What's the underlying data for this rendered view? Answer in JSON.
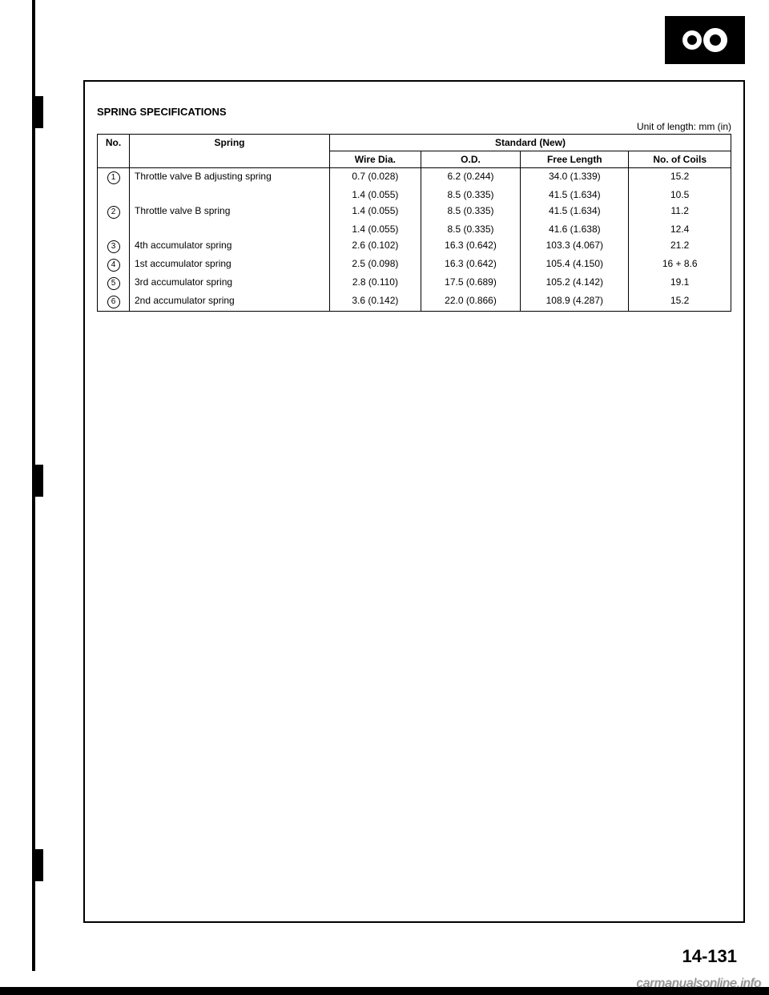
{
  "title": "SPRING SPECIFICATIONS",
  "unit_note": "Unit of length: mm (in)",
  "page_number": "14-131",
  "watermark": "carmanualsonline.info",
  "headers": {
    "no": "No.",
    "spring": "Spring",
    "standard": "Standard (New)",
    "wire_dia": "Wire Dia.",
    "od": "O.D.",
    "free_length": "Free Length",
    "no_of_coils": "No. of Coils"
  },
  "rows": [
    {
      "no": "1",
      "spring": "Throttle valve B adjusting spring",
      "wire_dia": "0.7 (0.028)",
      "od": "6.2 (0.244)",
      "free_length": "34.0 (1.339)",
      "coils": "15.2"
    },
    {
      "no": "",
      "spring": "",
      "wire_dia": "1.4 (0.055)",
      "od": "8.5 (0.335)",
      "free_length": "41.5 (1.634)",
      "coils": "10.5"
    },
    {
      "no": "2",
      "spring": "Throttle valve B spring",
      "wire_dia": "1.4 (0.055)",
      "od": "8.5 (0.335)",
      "free_length": "41.5 (1.634)",
      "coils": "11.2"
    },
    {
      "no": "",
      "spring": "",
      "wire_dia": "1.4 (0.055)",
      "od": "8.5 (0.335)",
      "free_length": "41.6 (1.638)",
      "coils": "12.4"
    },
    {
      "no": "3",
      "spring": "4th accumulator spring",
      "wire_dia": "2.6 (0.102)",
      "od": "16.3 (0.642)",
      "free_length": "103.3 (4.067)",
      "coils": "21.2"
    },
    {
      "no": "4",
      "spring": "1st accumulator spring",
      "wire_dia": "2.5 (0.098)",
      "od": "16.3 (0.642)",
      "free_length": "105.4 (4.150)",
      "coils": "16 + 8.6"
    },
    {
      "no": "5",
      "spring": "3rd accumulator spring",
      "wire_dia": "2.8 (0.110)",
      "od": "17.5 (0.689)",
      "free_length": "105.2 (4.142)",
      "coils": "19.1"
    },
    {
      "no": "6",
      "spring": "2nd accumulator spring",
      "wire_dia": "3.6 (0.142)",
      "od": "22.0 (0.866)",
      "free_length": "108.9 (4.287)",
      "coils": "15.2"
    }
  ]
}
